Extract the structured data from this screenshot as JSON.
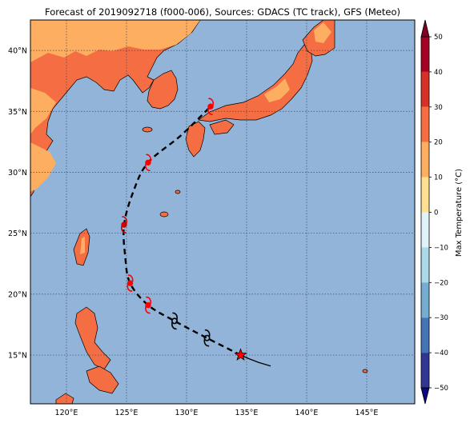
{
  "title": "Forecast of 2019092718 (f000-006), Sources: GDACS (TC track), GFS (Meteo)",
  "map": {
    "lon_range": [
      117,
      149
    ],
    "lat_range": [
      11,
      42.5
    ],
    "ocean_color": "#92b4d8",
    "land_colors": {
      "warm": "#f46d43",
      "mild": "#fdae61"
    },
    "lat_ticks": [
      {
        "value": 15,
        "label": "15°N"
      },
      {
        "value": 20,
        "label": "20°N"
      },
      {
        "value": 25,
        "label": "25°N"
      },
      {
        "value": 30,
        "label": "30°N"
      },
      {
        "value": 35,
        "label": "35°N"
      },
      {
        "value": 40,
        "label": "40°N"
      }
    ],
    "lon_ticks": [
      {
        "value": 120,
        "label": "120°E"
      },
      {
        "value": 125,
        "label": "125°E"
      },
      {
        "value": 130,
        "label": "130°E"
      },
      {
        "value": 135,
        "label": "135°E"
      },
      {
        "value": 140,
        "label": "140°E"
      },
      {
        "value": 145,
        "label": "145°E"
      }
    ]
  },
  "track": {
    "past": [
      [
        137.0,
        14.1
      ],
      [
        136.0,
        14.4
      ],
      [
        135.2,
        14.7
      ],
      [
        134.5,
        15.0
      ]
    ],
    "forecast": [
      [
        134.5,
        15.0
      ],
      [
        131.7,
        16.4
      ],
      [
        129.0,
        17.8
      ],
      [
        126.8,
        19.1
      ],
      [
        125.3,
        20.9
      ],
      [
        124.9,
        23.0
      ],
      [
        124.8,
        25.7
      ],
      [
        125.6,
        28.5
      ],
      [
        126.8,
        30.8
      ],
      [
        129.5,
        33.0
      ],
      [
        132.0,
        35.4
      ]
    ],
    "current": {
      "lon": 134.5,
      "lat": 15.0,
      "icon": "star-icon",
      "color": "#ff0000"
    },
    "symbols": [
      {
        "lon": 131.7,
        "lat": 16.4,
        "color": "#000000",
        "icon": "tropical-storm-icon"
      },
      {
        "lon": 129.0,
        "lat": 17.8,
        "color": "#000000",
        "icon": "tropical-storm-icon"
      },
      {
        "lon": 126.8,
        "lat": 19.1,
        "color": "#ff0000",
        "icon": "typhoon-icon"
      },
      {
        "lon": 125.3,
        "lat": 20.9,
        "color": "#ff0000",
        "icon": "typhoon-icon"
      },
      {
        "lon": 124.8,
        "lat": 25.7,
        "color": "#cc0000",
        "icon": "typhoon-icon"
      },
      {
        "lon": 126.8,
        "lat": 30.8,
        "color": "#ff0000",
        "icon": "typhoon-icon"
      },
      {
        "lon": 132.0,
        "lat": 35.4,
        "color": "#ff0000",
        "icon": "typhoon-icon"
      }
    ]
  },
  "colorbar": {
    "label": "Max Temperature (°C)",
    "min": -50,
    "max": 50,
    "ticks": [
      {
        "value": 50,
        "label": "50"
      },
      {
        "value": 40,
        "label": "40"
      },
      {
        "value": 30,
        "label": "30"
      },
      {
        "value": 20,
        "label": "20"
      },
      {
        "value": 10,
        "label": "10"
      },
      {
        "value": 0,
        "label": "0"
      },
      {
        "value": -10,
        "label": "−10"
      },
      {
        "value": -20,
        "label": "−20"
      },
      {
        "value": -30,
        "label": "−30"
      },
      {
        "value": -40,
        "label": "−40"
      },
      {
        "value": -50,
        "label": "−50"
      }
    ],
    "bands": [
      {
        "from": 40,
        "to": 50,
        "color": "#a50026"
      },
      {
        "from": 30,
        "to": 40,
        "color": "#d73027"
      },
      {
        "from": 20,
        "to": 30,
        "color": "#f46d43"
      },
      {
        "from": 10,
        "to": 20,
        "color": "#fdae61"
      },
      {
        "from": 0,
        "to": 10,
        "color": "#fee090"
      },
      {
        "from": -10,
        "to": 0,
        "color": "#e0f3f8"
      },
      {
        "from": -20,
        "to": -10,
        "color": "#abd9e9"
      },
      {
        "from": -30,
        "to": -20,
        "color": "#74add1"
      },
      {
        "from": -40,
        "to": -30,
        "color": "#4575b4"
      },
      {
        "from": -50,
        "to": -40,
        "color": "#313695"
      }
    ],
    "over_color": "#800026",
    "under_color": "#0b0b78"
  }
}
